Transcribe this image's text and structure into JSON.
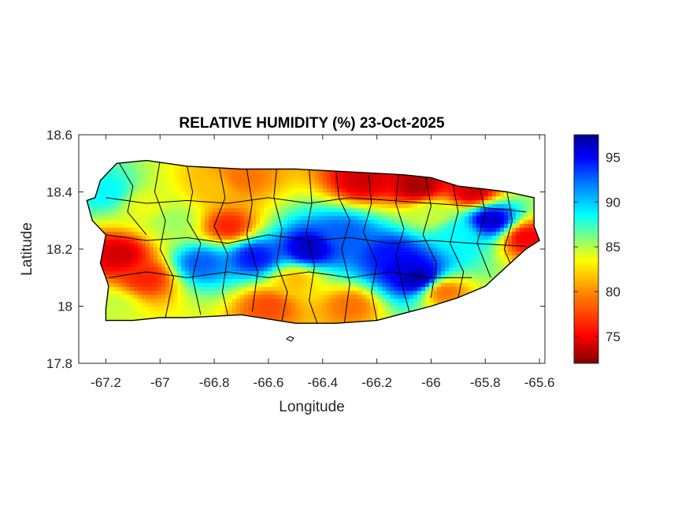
{
  "figure": {
    "title": "RELATIVE HUMIDITY (%) 23-Oct-2025",
    "xlabel": "Longitude",
    "ylabel": "Latitude"
  },
  "axes": {
    "x_range": [
      -67.3,
      -65.58
    ],
    "y_range": [
      17.8,
      18.6
    ],
    "x_ticks": [
      {
        "value": -67.2,
        "label": "-67.2"
      },
      {
        "value": -67.0,
        "label": "-67"
      },
      {
        "value": -66.8,
        "label": "-66.8"
      },
      {
        "value": -66.6,
        "label": "-66.6"
      },
      {
        "value": -66.4,
        "label": "-66.4"
      },
      {
        "value": -66.2,
        "label": "-66.2"
      },
      {
        "value": -66.0,
        "label": "-66"
      },
      {
        "value": -65.8,
        "label": "-65.8"
      },
      {
        "value": -65.6,
        "label": "-65.6"
      }
    ],
    "y_ticks": [
      {
        "value": 18.6,
        "label": "18.6"
      },
      {
        "value": 18.4,
        "label": "18.4"
      },
      {
        "value": 18.2,
        "label": "18.2"
      },
      {
        "value": 18.0,
        "label": "18"
      },
      {
        "value": 17.8,
        "label": "17.8"
      }
    ]
  },
  "colorbar": {
    "range": [
      72,
      97.5
    ],
    "colormap": "jet",
    "ticks": [
      {
        "value": 95,
        "label": "95"
      },
      {
        "value": 90,
        "label": "90"
      },
      {
        "value": 85,
        "label": "85"
      },
      {
        "value": 80,
        "label": "80"
      },
      {
        "value": 75,
        "label": "75"
      }
    ]
  },
  "colors": {
    "jet_stops": [
      "#7f0000",
      "#ff0000",
      "#ff8000",
      "#ffff00",
      "#80ff80",
      "#00ffff",
      "#0080ff",
      "#0000ff",
      "#00008f"
    ],
    "boundary": "#000000",
    "axis": "#262626"
  },
  "chart_data": {
    "type": "heatmap",
    "title": "RELATIVE HUMIDITY (%) 23-Oct-2025",
    "xlabel": "Longitude",
    "ylabel": "Latitude",
    "xlim": [
      -67.3,
      -65.58
    ],
    "ylim": [
      17.8,
      18.6
    ],
    "color_range": [
      72,
      97.5
    ],
    "region": "Puerto Rico",
    "outline": [
      [
        -67.27,
        18.37
      ],
      [
        -67.24,
        18.38
      ],
      [
        -67.22,
        18.44
      ],
      [
        -67.16,
        18.5
      ],
      [
        -67.05,
        18.51
      ],
      [
        -66.9,
        18.49
      ],
      [
        -66.7,
        18.48
      ],
      [
        -66.5,
        18.48
      ],
      [
        -66.3,
        18.47
      ],
      [
        -66.1,
        18.46
      ],
      [
        -66.0,
        18.45
      ],
      [
        -65.9,
        18.42
      ],
      [
        -65.8,
        18.41
      ],
      [
        -65.72,
        18.4
      ],
      [
        -65.62,
        18.38
      ],
      [
        -65.62,
        18.28
      ],
      [
        -65.6,
        18.23
      ],
      [
        -65.65,
        18.2
      ],
      [
        -65.72,
        18.14
      ],
      [
        -65.8,
        18.07
      ],
      [
        -65.9,
        18.03
      ],
      [
        -66.0,
        18.0
      ],
      [
        -66.2,
        17.95
      ],
      [
        -66.35,
        17.94
      ],
      [
        -66.5,
        17.94
      ],
      [
        -66.7,
        17.97
      ],
      [
        -66.9,
        17.96
      ],
      [
        -67.0,
        17.96
      ],
      [
        -67.1,
        17.95
      ],
      [
        -67.2,
        17.95
      ],
      [
        -67.2,
        17.99
      ],
      [
        -67.19,
        18.07
      ],
      [
        -67.2,
        18.1
      ],
      [
        -67.22,
        18.15
      ],
      [
        -67.2,
        18.25
      ],
      [
        -67.25,
        18.3
      ]
    ],
    "centers": [
      {
        "lon": -66.85,
        "lat": 18.15,
        "value": 92
      },
      {
        "lon": -66.65,
        "lat": 18.17,
        "value": 94
      },
      {
        "lon": -66.45,
        "lat": 18.2,
        "value": 96
      },
      {
        "lon": -66.32,
        "lat": 18.25,
        "value": 92
      },
      {
        "lon": -66.15,
        "lat": 18.18,
        "value": 94
      },
      {
        "lon": -66.05,
        "lat": 18.1,
        "value": 97
      },
      {
        "lon": -66.1,
        "lat": 18.14,
        "value": 95
      },
      {
        "lon": -65.78,
        "lat": 18.3,
        "value": 96
      },
      {
        "lon": -65.9,
        "lat": 18.25,
        "value": 88
      },
      {
        "lon": -66.5,
        "lat": 18.09,
        "value": 80
      },
      {
        "lon": -66.25,
        "lat": 18.44,
        "value": 74
      },
      {
        "lon": -66.05,
        "lat": 18.42,
        "value": 73
      },
      {
        "lon": -65.85,
        "lat": 18.4,
        "value": 74
      },
      {
        "lon": -65.65,
        "lat": 18.24,
        "value": 75
      },
      {
        "lon": -67.15,
        "lat": 18.18,
        "value": 74
      },
      {
        "lon": -67.05,
        "lat": 18.1,
        "value": 76
      },
      {
        "lon": -67.2,
        "lat": 18.4,
        "value": 88
      },
      {
        "lon": -67.18,
        "lat": 18.0,
        "value": 83
      },
      {
        "lon": -66.7,
        "lat": 18.45,
        "value": 78
      },
      {
        "lon": -66.75,
        "lat": 18.28,
        "value": 76
      },
      {
        "lon": -66.6,
        "lat": 18.0,
        "value": 77
      },
      {
        "lon": -66.3,
        "lat": 18.0,
        "value": 78
      },
      {
        "lon": -66.95,
        "lat": 18.3,
        "value": 84
      },
      {
        "lon": -67.05,
        "lat": 18.35,
        "value": 82
      },
      {
        "lon": -66.8,
        "lat": 18.42,
        "value": 80
      },
      {
        "lon": -65.95,
        "lat": 18.05,
        "value": 78
      },
      {
        "lon": -66.0,
        "lat": 18.32,
        "value": 83
      }
    ],
    "background_value": 80
  }
}
